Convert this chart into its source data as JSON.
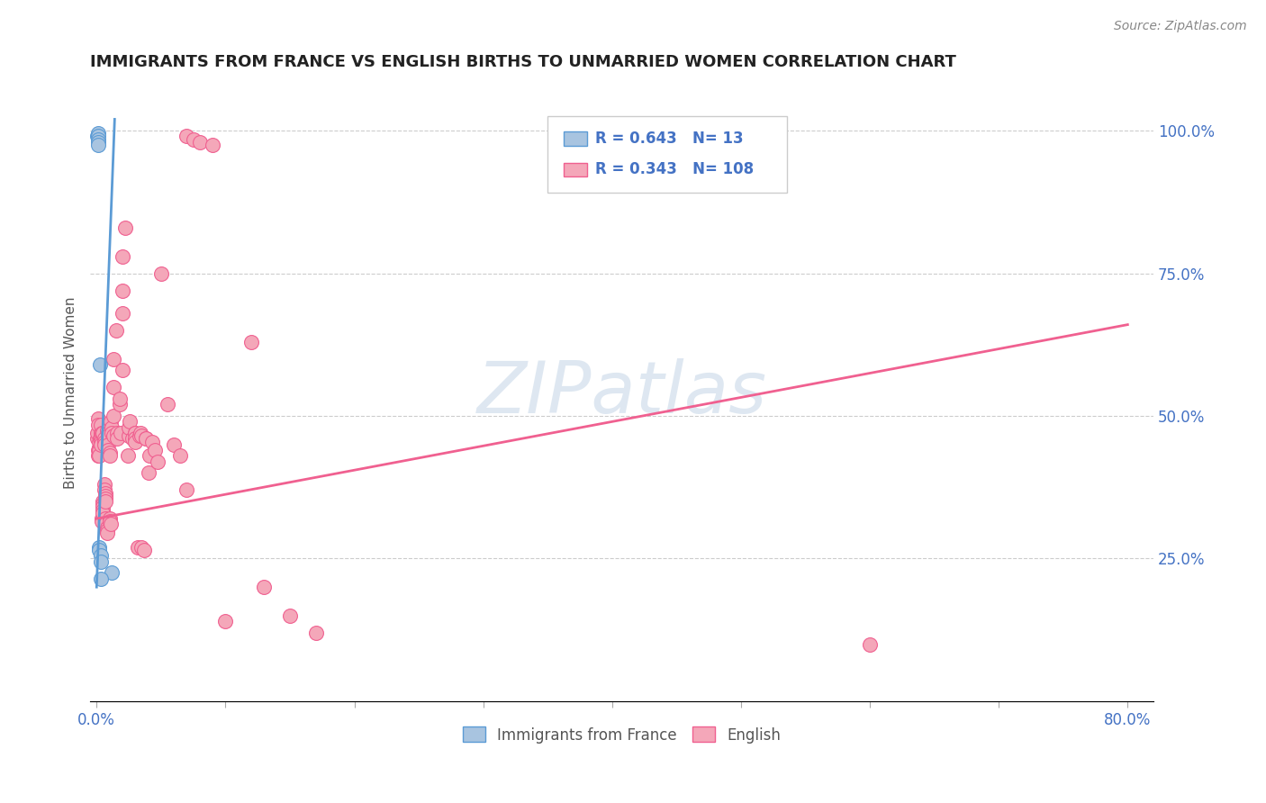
{
  "title": "IMMIGRANTS FROM FRANCE VS ENGLISH BIRTHS TO UNMARRIED WOMEN CORRELATION CHART",
  "source": "Source: ZipAtlas.com",
  "ylabel": "Births to Unmarried Women",
  "ylabel_right_ticks": [
    "100.0%",
    "75.0%",
    "50.0%",
    "25.0%"
  ],
  "ylabel_right_vals": [
    1.0,
    0.75,
    0.5,
    0.25
  ],
  "legend_label1": "Immigrants from France",
  "legend_label2": "English",
  "legend_r1": "0.643",
  "legend_n1": "13",
  "legend_r2": "0.343",
  "legend_n2": "108",
  "color_france": "#a8c4e0",
  "color_english": "#f4a7b9",
  "color_france_line": "#5b9bd5",
  "color_english_line": "#f06090",
  "color_legend_r": "#4472c4",
  "color_title": "#222222",
  "france_x": [
    0.0005,
    0.001,
    0.001,
    0.001,
    0.001,
    0.001,
    0.002,
    0.002,
    0.0025,
    0.003,
    0.003,
    0.012,
    0.003
  ],
  "france_y": [
    0.99,
    0.995,
    0.99,
    0.985,
    0.98,
    0.975,
    0.27,
    0.265,
    0.59,
    0.255,
    0.245,
    0.225,
    0.215
  ],
  "english_x": [
    0.0005,
    0.0008,
    0.001,
    0.0012,
    0.0015,
    0.0015,
    0.0018,
    0.002,
    0.002,
    0.002,
    0.0022,
    0.0025,
    0.003,
    0.003,
    0.003,
    0.003,
    0.003,
    0.0035,
    0.004,
    0.004,
    0.004,
    0.005,
    0.005,
    0.005,
    0.005,
    0.005,
    0.005,
    0.006,
    0.006,
    0.006,
    0.006,
    0.006,
    0.007,
    0.007,
    0.007,
    0.007,
    0.007,
    0.007,
    0.008,
    0.008,
    0.008,
    0.008,
    0.009,
    0.009,
    0.009,
    0.009,
    0.01,
    0.01,
    0.01,
    0.01,
    0.011,
    0.011,
    0.012,
    0.012,
    0.013,
    0.013,
    0.013,
    0.013,
    0.015,
    0.016,
    0.016,
    0.018,
    0.018,
    0.019,
    0.02,
    0.02,
    0.02,
    0.02,
    0.022,
    0.024,
    0.025,
    0.025,
    0.026,
    0.028,
    0.03,
    0.03,
    0.03,
    0.03,
    0.032,
    0.033,
    0.034,
    0.035,
    0.035,
    0.037,
    0.038,
    0.038,
    0.04,
    0.041,
    0.043,
    0.045,
    0.047,
    0.05,
    0.055,
    0.06,
    0.065,
    0.07,
    0.07,
    0.075,
    0.08,
    0.09,
    0.1,
    0.12,
    0.13,
    0.15,
    0.17,
    0.6
  ],
  "english_y": [
    0.46,
    0.47,
    0.495,
    0.485,
    0.44,
    0.43,
    0.435,
    0.445,
    0.44,
    0.43,
    0.455,
    0.46,
    0.47,
    0.465,
    0.46,
    0.455,
    0.45,
    0.485,
    0.32,
    0.315,
    0.47,
    0.35,
    0.345,
    0.34,
    0.335,
    0.33,
    0.47,
    0.46,
    0.455,
    0.45,
    0.38,
    0.37,
    0.365,
    0.36,
    0.355,
    0.35,
    0.32,
    0.31,
    0.305,
    0.3,
    0.295,
    0.475,
    0.47,
    0.465,
    0.45,
    0.44,
    0.435,
    0.43,
    0.32,
    0.315,
    0.31,
    0.49,
    0.48,
    0.47,
    0.465,
    0.5,
    0.55,
    0.6,
    0.65,
    0.47,
    0.46,
    0.52,
    0.53,
    0.47,
    0.58,
    0.68,
    0.72,
    0.78,
    0.83,
    0.43,
    0.465,
    0.48,
    0.49,
    0.46,
    0.47,
    0.47,
    0.46,
    0.455,
    0.27,
    0.465,
    0.47,
    0.465,
    0.27,
    0.265,
    0.46,
    0.46,
    0.4,
    0.43,
    0.455,
    0.44,
    0.42,
    0.75,
    0.52,
    0.45,
    0.43,
    0.37,
    0.99,
    0.985,
    0.98,
    0.975,
    0.14,
    0.63,
    0.2,
    0.15,
    0.12,
    0.1,
    0.08,
    0.14
  ],
  "france_line_x": [
    0.0,
    0.014
  ],
  "france_line_y": [
    0.2,
    1.02
  ],
  "english_line_x": [
    0.0,
    0.8
  ],
  "english_line_y": [
    0.32,
    0.66
  ],
  "xmin": -0.005,
  "xmax": 0.82,
  "ymin": 0.0,
  "ymax": 1.08,
  "watermark": "ZIPatlas",
  "watermark_color": "#c8d8e8",
  "background_color": "#ffffff"
}
